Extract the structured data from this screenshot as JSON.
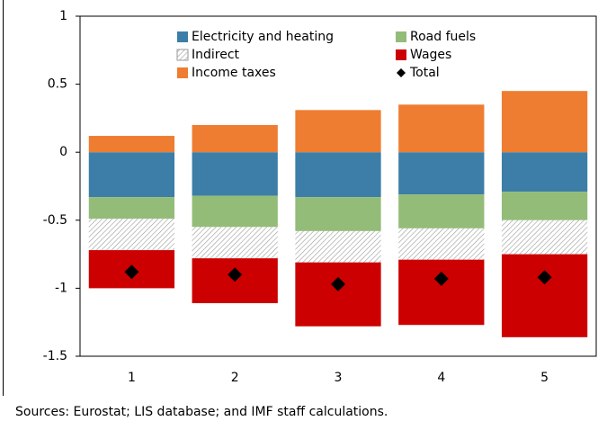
{
  "chart_data": {
    "type": "bar",
    "stacked": true,
    "categories": [
      "1",
      "2",
      "3",
      "4",
      "5"
    ],
    "series": [
      {
        "name": "Electricity and heating",
        "color": "#3c7ea8",
        "values": [
          -0.33,
          -0.32,
          -0.33,
          -0.31,
          -0.29
        ]
      },
      {
        "name": "Road fuels",
        "color": "#93bc78",
        "values": [
          -0.16,
          -0.23,
          -0.25,
          -0.25,
          -0.21
        ]
      },
      {
        "name": "Indirect",
        "color": "#9a9a9a",
        "pattern": "hatch",
        "values": [
          -0.23,
          -0.23,
          -0.23,
          -0.23,
          -0.25
        ]
      },
      {
        "name": "Wages",
        "color": "#cc0000",
        "values": [
          -0.28,
          -0.33,
          -0.47,
          -0.48,
          -0.61
        ]
      },
      {
        "name": "Income taxes",
        "color": "#ee7d31",
        "values": [
          0.12,
          0.2,
          0.31,
          0.35,
          0.45
        ]
      },
      {
        "name": "Total",
        "color": "#000000",
        "type": "scatter",
        "marker": "diamond",
        "values": [
          -0.88,
          -0.9,
          -0.97,
          -0.93,
          -0.92
        ]
      }
    ],
    "ylim": [
      -1.5,
      1
    ],
    "yticks": [
      -1.5,
      -1,
      -0.5,
      0,
      0.5,
      1
    ],
    "grid": false,
    "note": "Sources: Eurostat; LIS database; and IMF staff calculations."
  }
}
